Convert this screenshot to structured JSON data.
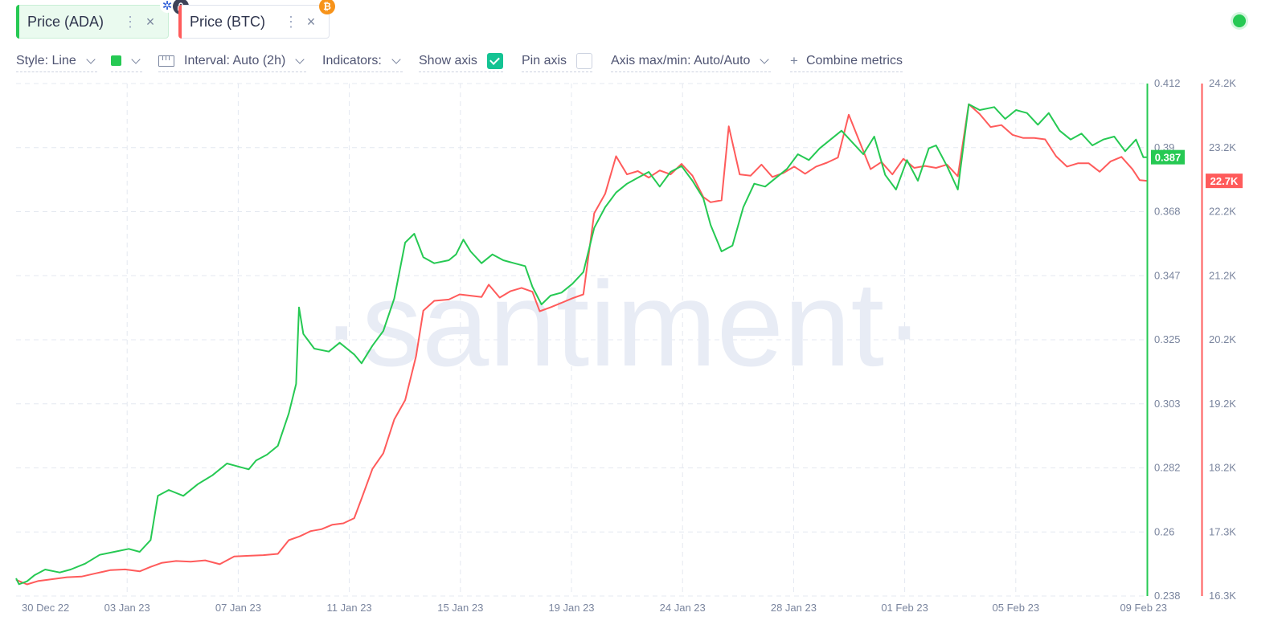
{
  "metrics": [
    {
      "label": "Price (ADA)",
      "color": "#26c953",
      "icon": "cardano-icon"
    },
    {
      "label": "Price (BTC)",
      "color": "#ff5b5b",
      "icon": "bitcoin-icon"
    }
  ],
  "toolbar": {
    "style_label": "Style: Line",
    "interval_label": "Interval: Auto (2h)",
    "indicators_label": "Indicators:",
    "show_axis_label": "Show axis",
    "show_axis_checked": true,
    "pin_axis_label": "Pin axis",
    "pin_axis_checked": false,
    "axis_minmax_label": "Axis max/min: Auto/Auto",
    "combine_label": "Combine metrics",
    "more_icon": "⋮",
    "close_icon": "×",
    "plus_icon": "+"
  },
  "watermark": "·santiment·",
  "chart_data": {
    "type": "line",
    "x_ticks": [
      "30 Dec 22",
      "03 Jan 23",
      "07 Jan 23",
      "11 Jan 23",
      "15 Jan 23",
      "19 Jan 23",
      "24 Jan 23",
      "28 Jan 23",
      "01 Feb 23",
      "05 Feb 23",
      "09 Feb 23"
    ],
    "y_left_ticks": [
      "0.412",
      "0.39",
      "0.368",
      "0.347",
      "0.325",
      "0.303",
      "0.282",
      "0.26",
      "0.238"
    ],
    "y_right_ticks": [
      "24.2K",
      "23.2K",
      "22.2K",
      "21.2K",
      "20.2K",
      "19.2K",
      "18.2K",
      "17.3K",
      "16.3K"
    ],
    "y_left_range": [
      0.238,
      0.412
    ],
    "y_right_range": [
      16300,
      24200
    ],
    "grid": true,
    "series": [
      {
        "name": "Price (ADA)",
        "axis": "left",
        "color": "#26c953",
        "last_value_label": "0.387",
        "points": [
          [
            0,
            0.244
          ],
          [
            0.08,
            0.242
          ],
          [
            0.3,
            0.243
          ],
          [
            0.5,
            0.245
          ],
          [
            0.8,
            0.247
          ],
          [
            1.2,
            0.246
          ],
          [
            1.5,
            0.247
          ],
          [
            1.9,
            0.249
          ],
          [
            2.3,
            0.252
          ],
          [
            2.7,
            0.253
          ],
          [
            3.1,
            0.254
          ],
          [
            3.4,
            0.253
          ],
          [
            3.7,
            0.257
          ],
          [
            3.9,
            0.272
          ],
          [
            4.2,
            0.274
          ],
          [
            4.6,
            0.272
          ],
          [
            5.0,
            0.276
          ],
          [
            5.4,
            0.279
          ],
          [
            5.8,
            0.283
          ],
          [
            6.1,
            0.282
          ],
          [
            6.4,
            0.281
          ],
          [
            6.6,
            0.284
          ],
          [
            6.9,
            0.286
          ],
          [
            7.2,
            0.289
          ],
          [
            7.5,
            0.3
          ],
          [
            7.7,
            0.31
          ],
          [
            7.78,
            0.336
          ],
          [
            7.9,
            0.327
          ],
          [
            8.2,
            0.322
          ],
          [
            8.6,
            0.321
          ],
          [
            8.9,
            0.324
          ],
          [
            9.1,
            0.322
          ],
          [
            9.3,
            0.32
          ],
          [
            9.5,
            0.317
          ],
          [
            9.8,
            0.323
          ],
          [
            10.1,
            0.328
          ],
          [
            10.4,
            0.339
          ],
          [
            10.7,
            0.358
          ],
          [
            10.95,
            0.361
          ],
          [
            11.2,
            0.353
          ],
          [
            11.5,
            0.351
          ],
          [
            11.9,
            0.352
          ],
          [
            12.1,
            0.354
          ],
          [
            12.3,
            0.359
          ],
          [
            12.5,
            0.355
          ],
          [
            12.8,
            0.351
          ],
          [
            13.1,
            0.354
          ],
          [
            13.4,
            0.352
          ],
          [
            13.7,
            0.351
          ],
          [
            14.0,
            0.35
          ],
          [
            14.2,
            0.343
          ],
          [
            14.45,
            0.337
          ],
          [
            14.7,
            0.34
          ],
          [
            15.0,
            0.341
          ],
          [
            15.3,
            0.344
          ],
          [
            15.6,
            0.348
          ],
          [
            15.9,
            0.363
          ],
          [
            16.2,
            0.37
          ],
          [
            16.5,
            0.375
          ],
          [
            16.8,
            0.378
          ],
          [
            17.1,
            0.38
          ],
          [
            17.4,
            0.382
          ],
          [
            17.7,
            0.377
          ],
          [
            18.0,
            0.382
          ],
          [
            18.3,
            0.384
          ],
          [
            18.6,
            0.379
          ],
          [
            18.9,
            0.373
          ],
          [
            19.1,
            0.364
          ],
          [
            19.4,
            0.355
          ],
          [
            19.7,
            0.357
          ],
          [
            20.0,
            0.37
          ],
          [
            20.3,
            0.378
          ],
          [
            20.6,
            0.377
          ],
          [
            20.9,
            0.38
          ],
          [
            21.2,
            0.383
          ],
          [
            21.5,
            0.388
          ],
          [
            21.8,
            0.386
          ],
          [
            22.1,
            0.39
          ],
          [
            22.4,
            0.393
          ],
          [
            22.7,
            0.396
          ],
          [
            23.0,
            0.392
          ],
          [
            23.3,
            0.388
          ],
          [
            23.6,
            0.394
          ],
          [
            23.9,
            0.381
          ],
          [
            24.2,
            0.376
          ],
          [
            24.5,
            0.386
          ],
          [
            24.8,
            0.379
          ],
          [
            25.1,
            0.39
          ],
          [
            25.3,
            0.391
          ],
          [
            25.6,
            0.384
          ],
          [
            25.9,
            0.376
          ],
          [
            26.2,
            0.405
          ],
          [
            26.5,
            0.403
          ],
          [
            26.9,
            0.404
          ],
          [
            27.2,
            0.4
          ],
          [
            27.5,
            0.403
          ],
          [
            27.8,
            0.402
          ],
          [
            28.1,
            0.398
          ],
          [
            28.4,
            0.402
          ],
          [
            28.7,
            0.396
          ],
          [
            29.0,
            0.393
          ],
          [
            29.3,
            0.395
          ],
          [
            29.6,
            0.391
          ],
          [
            29.9,
            0.393
          ],
          [
            30.2,
            0.394
          ],
          [
            30.5,
            0.389
          ],
          [
            30.8,
            0.393
          ],
          [
            31.0,
            0.387
          ],
          [
            31.1,
            0.387
          ]
        ]
      },
      {
        "name": "Price (BTC)",
        "axis": "right",
        "color": "#ff5b5b",
        "last_value_label": "22.7K",
        "points": [
          [
            0,
            16550
          ],
          [
            0.3,
            16480
          ],
          [
            0.6,
            16530
          ],
          [
            1.0,
            16560
          ],
          [
            1.4,
            16590
          ],
          [
            1.8,
            16600
          ],
          [
            2.2,
            16650
          ],
          [
            2.6,
            16700
          ],
          [
            3.0,
            16710
          ],
          [
            3.4,
            16680
          ],
          [
            3.7,
            16750
          ],
          [
            4.0,
            16810
          ],
          [
            4.4,
            16840
          ],
          [
            4.8,
            16830
          ],
          [
            5.2,
            16850
          ],
          [
            5.6,
            16790
          ],
          [
            6.0,
            16910
          ],
          [
            6.4,
            16920
          ],
          [
            6.8,
            16930
          ],
          [
            7.2,
            16950
          ],
          [
            7.5,
            17160
          ],
          [
            7.8,
            17220
          ],
          [
            8.1,
            17300
          ],
          [
            8.4,
            17330
          ],
          [
            8.7,
            17400
          ],
          [
            9.0,
            17420
          ],
          [
            9.3,
            17500
          ],
          [
            9.5,
            17800
          ],
          [
            9.8,
            18260
          ],
          [
            10.1,
            18500
          ],
          [
            10.4,
            19020
          ],
          [
            10.7,
            19320
          ],
          [
            11.0,
            20000
          ],
          [
            11.2,
            20700
          ],
          [
            11.5,
            20850
          ],
          [
            11.9,
            20870
          ],
          [
            12.2,
            20950
          ],
          [
            12.5,
            20930
          ],
          [
            12.8,
            20910
          ],
          [
            13.0,
            21100
          ],
          [
            13.3,
            20900
          ],
          [
            13.6,
            21000
          ],
          [
            13.9,
            21050
          ],
          [
            14.2,
            20990
          ],
          [
            14.4,
            20690
          ],
          [
            14.7,
            20750
          ],
          [
            15.0,
            20820
          ],
          [
            15.3,
            20890
          ],
          [
            15.6,
            20950
          ],
          [
            15.9,
            22200
          ],
          [
            16.2,
            22500
          ],
          [
            16.5,
            23080
          ],
          [
            16.8,
            22800
          ],
          [
            17.1,
            22850
          ],
          [
            17.4,
            22750
          ],
          [
            17.7,
            22860
          ],
          [
            18.0,
            22800
          ],
          [
            18.3,
            22960
          ],
          [
            18.6,
            22780
          ],
          [
            18.9,
            22450
          ],
          [
            19.1,
            22370
          ],
          [
            19.4,
            22400
          ],
          [
            19.6,
            23540
          ],
          [
            19.9,
            22800
          ],
          [
            20.2,
            22780
          ],
          [
            20.5,
            22950
          ],
          [
            20.8,
            22760
          ],
          [
            21.1,
            22820
          ],
          [
            21.4,
            22920
          ],
          [
            21.7,
            22810
          ],
          [
            22.0,
            22920
          ],
          [
            22.3,
            22980
          ],
          [
            22.6,
            23060
          ],
          [
            22.9,
            23720
          ],
          [
            23.2,
            23300
          ],
          [
            23.5,
            22880
          ],
          [
            23.8,
            22990
          ],
          [
            24.1,
            22800
          ],
          [
            24.4,
            23040
          ],
          [
            24.7,
            22900
          ],
          [
            25.0,
            22930
          ],
          [
            25.3,
            22900
          ],
          [
            25.6,
            22950
          ],
          [
            25.9,
            22770
          ],
          [
            26.2,
            23880
          ],
          [
            26.5,
            23730
          ],
          [
            26.8,
            23530
          ],
          [
            27.1,
            23560
          ],
          [
            27.4,
            23410
          ],
          [
            27.7,
            23360
          ],
          [
            28.0,
            23360
          ],
          [
            28.3,
            23340
          ],
          [
            28.6,
            23080
          ],
          [
            28.9,
            22920
          ],
          [
            29.2,
            22970
          ],
          [
            29.5,
            22970
          ],
          [
            29.8,
            22840
          ],
          [
            30.1,
            23000
          ],
          [
            30.4,
            23070
          ],
          [
            30.7,
            22880
          ],
          [
            30.9,
            22710
          ],
          [
            31.1,
            22700
          ]
        ]
      }
    ]
  }
}
